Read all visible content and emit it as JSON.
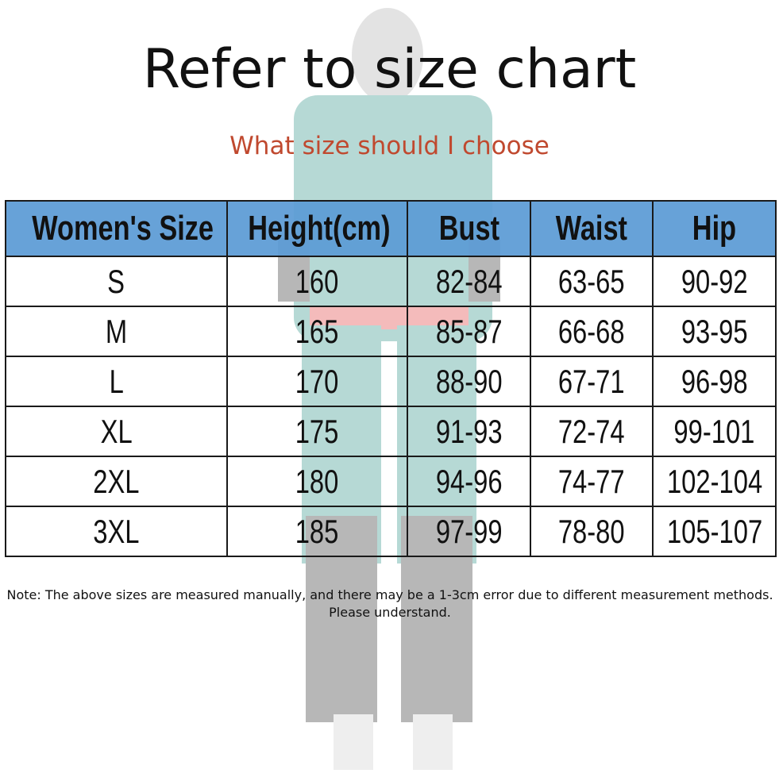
{
  "title": "Refer to size chart",
  "subtitle": "What size should I choose",
  "table": {
    "headers": [
      "Women's Size",
      "Height(cm)",
      "Bust",
      "Waist",
      "Hip"
    ],
    "rows": [
      [
        "S",
        "160",
        "82-84",
        "63-65",
        "90-92"
      ],
      [
        "M",
        "165",
        "85-87",
        "66-68",
        "93-95"
      ],
      [
        "L",
        "170",
        "88-90",
        "67-71",
        "96-98"
      ],
      [
        "XL",
        "175",
        "91-93",
        "72-74",
        "99-101"
      ],
      [
        "2XL",
        "180",
        "94-96",
        "74-77",
        "102-104"
      ],
      [
        "3XL",
        "185",
        "97-99",
        "78-80",
        "105-107"
      ]
    ],
    "header_color": "#5b9bd5"
  },
  "note": "Note: The above sizes are measured manually, and there may be a 1-3cm error due to different measurement methods. Please understand."
}
